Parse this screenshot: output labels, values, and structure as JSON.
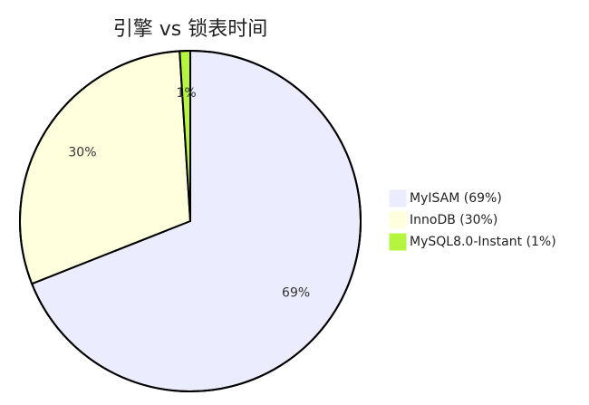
{
  "chart_data": {
    "type": "pie",
    "title": "引擎 vs 锁表时间",
    "categories": [
      "MyISAM (69%)",
      "InnoDB (30%)",
      "MySQL8.0-Instant (1%)"
    ],
    "values": [
      69,
      30,
      1
    ],
    "value_labels": [
      "69%",
      "30%",
      "1%"
    ],
    "colors": [
      "#ececff",
      "#ffffde",
      "#b5f53f"
    ]
  }
}
